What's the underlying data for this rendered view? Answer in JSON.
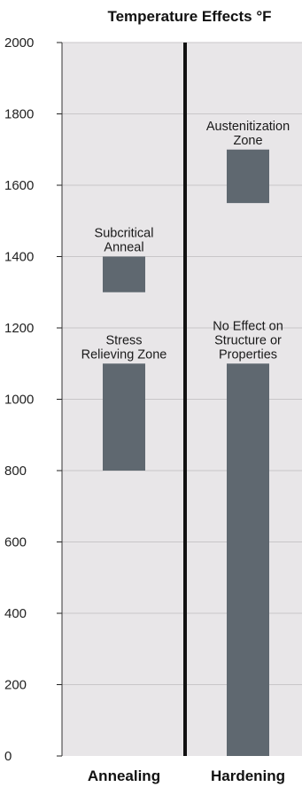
{
  "chart_data": {
    "type": "bar",
    "title": "Temperature Effects °F",
    "xlabel": "",
    "ylabel": "",
    "ylim": [
      0,
      2000
    ],
    "yticks": [
      0,
      200,
      400,
      600,
      800,
      1000,
      1200,
      1400,
      1600,
      1800,
      2000
    ],
    "grid": true,
    "categories": [
      "Annealing",
      "Hardening"
    ],
    "ranges": [
      {
        "category": "Annealing",
        "label": [
          "Subcritical",
          "Anneal"
        ],
        "low": 1300,
        "high": 1400
      },
      {
        "category": "Annealing",
        "label": [
          "Stress",
          "Relieving Zone"
        ],
        "low": 800,
        "high": 1100
      },
      {
        "category": "Hardening",
        "label": [
          "Austenitization",
          "Zone"
        ],
        "low": 1550,
        "high": 1700
      },
      {
        "category": "Hardening",
        "label": [
          "No Effect on",
          "Structure or",
          "Properties"
        ],
        "low": 0,
        "high": 1100
      }
    ],
    "colors": {
      "panel_background": "#e8e6e8",
      "bar": "#5f6870",
      "grid": "#c8c6c8",
      "divider": "#111111"
    }
  }
}
